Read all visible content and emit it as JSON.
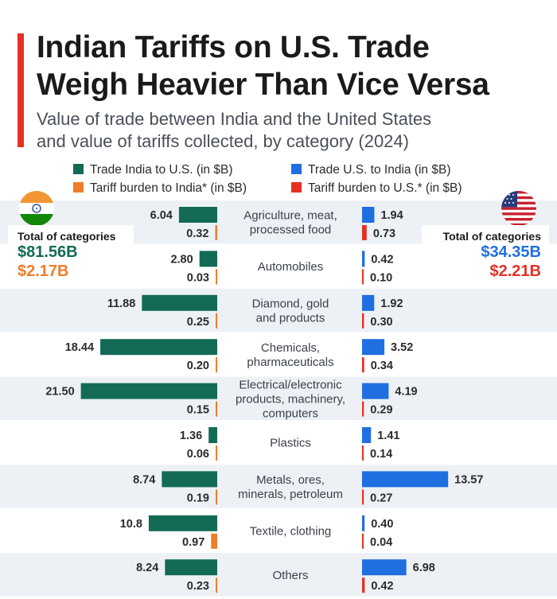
{
  "header": {
    "title_line1": "Indian Tariffs on U.S. Trade",
    "title_line2": "Weigh Heavier Than Vice Versa",
    "subtitle_line1": "Value of trade between India and the United States",
    "subtitle_line2": "and value of tariffs collected, by category (2024)"
  },
  "legend": {
    "trade_india_us": "Trade India to U.S. (in $B)",
    "trade_us_india": "Trade U.S. to India (in $B)",
    "tariff_india": "Tariff burden to India* (in $B)",
    "tariff_us": "Tariff burden to U.S.* (in $B)"
  },
  "totals": {
    "india": {
      "label": "Total of  categories",
      "trade": "$81.56B",
      "tariff": "$2.17B"
    },
    "us": {
      "label": "Total of  categories",
      "trade": "$34.35B",
      "tariff": "$2.21B"
    }
  },
  "colors": {
    "trade_india_us": "#136b55",
    "tariff_india": "#f07d2a",
    "trade_us_india": "#1f6fe0",
    "tariff_us": "#e63025",
    "accent": "#e63025",
    "stripe": "#edf1f6"
  },
  "icons": [
    "india-flag-icon",
    "us-flag-icon"
  ],
  "chart_data": {
    "type": "bar",
    "categories": [
      [
        "Agriculture, meat,",
        "processed food"
      ],
      [
        "Automobiles"
      ],
      [
        "Diamond, gold",
        "and products"
      ],
      [
        "Chemicals,",
        "pharmaceuticals"
      ],
      [
        "Electrical/electronic",
        "products, machinery,",
        "computers"
      ],
      [
        "Plastics"
      ],
      [
        "Metals, ores,",
        "minerals, petroleum"
      ],
      [
        "Textile, clothing"
      ],
      [
        "Others"
      ]
    ],
    "series": [
      {
        "name": "Trade India to U.S. (in $B)",
        "values": [
          6.04,
          2.8,
          11.88,
          18.44,
          21.5,
          1.36,
          8.74,
          10.8,
          8.24
        ],
        "labels": [
          "6.04",
          "2.80",
          "11.88",
          "18.44",
          "21.50",
          "1.36",
          "8.74",
          "10.8",
          "8.24"
        ]
      },
      {
        "name": "Tariff burden to India* (in $B)",
        "values": [
          0.32,
          0.03,
          0.25,
          0.2,
          0.15,
          0.06,
          0.19,
          0.97,
          0.23
        ],
        "labels": [
          "0.32",
          "0.03",
          "0.25",
          "0.20",
          "0.15",
          "0.06",
          "0.19",
          "0.97",
          "0.23"
        ]
      },
      {
        "name": "Trade U.S. to India (in $B)",
        "values": [
          1.94,
          0.42,
          1.92,
          3.52,
          4.19,
          1.41,
          13.57,
          0.4,
          6.98
        ],
        "labels": [
          "1.94",
          "0.42",
          "1.92",
          "3.52",
          "4.19",
          "1.41",
          "13.57",
          "0.40",
          "6.98"
        ]
      },
      {
        "name": "Tariff burden to U.S.* (in $B)",
        "values": [
          0.73,
          0.1,
          0.3,
          0.34,
          0.29,
          0.14,
          0.27,
          0.04,
          0.42
        ],
        "labels": [
          "0.73",
          "0.10",
          "0.30",
          "0.34",
          "0.29",
          "0.14",
          "0.27",
          "0.04",
          "0.42"
        ]
      }
    ]
  }
}
